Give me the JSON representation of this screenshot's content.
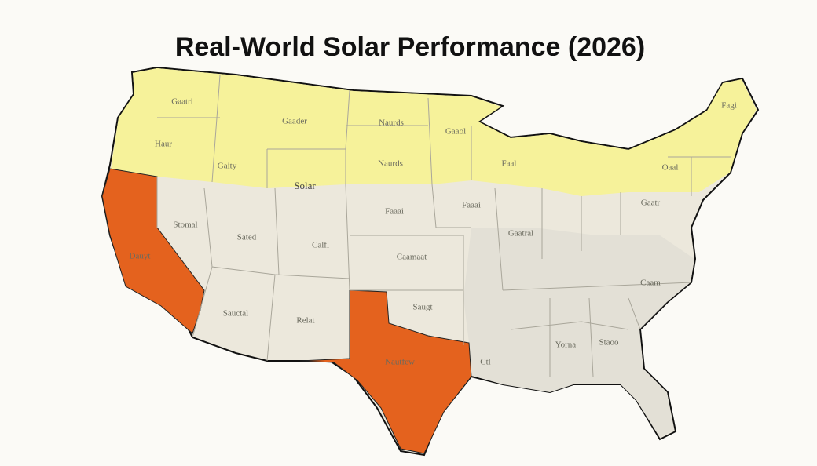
{
  "title": "Real-World Solar Performance (2026)",
  "map": {
    "labels": [
      "Gaatri",
      "Gaader",
      "Naurds",
      "Gaaol",
      "Haur",
      "Gaity",
      "Solar",
      "Naurds",
      "Faaai",
      "Faaai",
      "Stomal",
      "Sated",
      "Calfl",
      "Caamaat",
      "Dauyt",
      "Gaatr",
      "Gaatral",
      "Saugt",
      "Sauctal",
      "Relat",
      "Nautfew",
      "Yorna",
      "Staoo",
      "Caam",
      "Ctl",
      "Faal",
      "Oaal",
      "Fagi"
    ]
  }
}
